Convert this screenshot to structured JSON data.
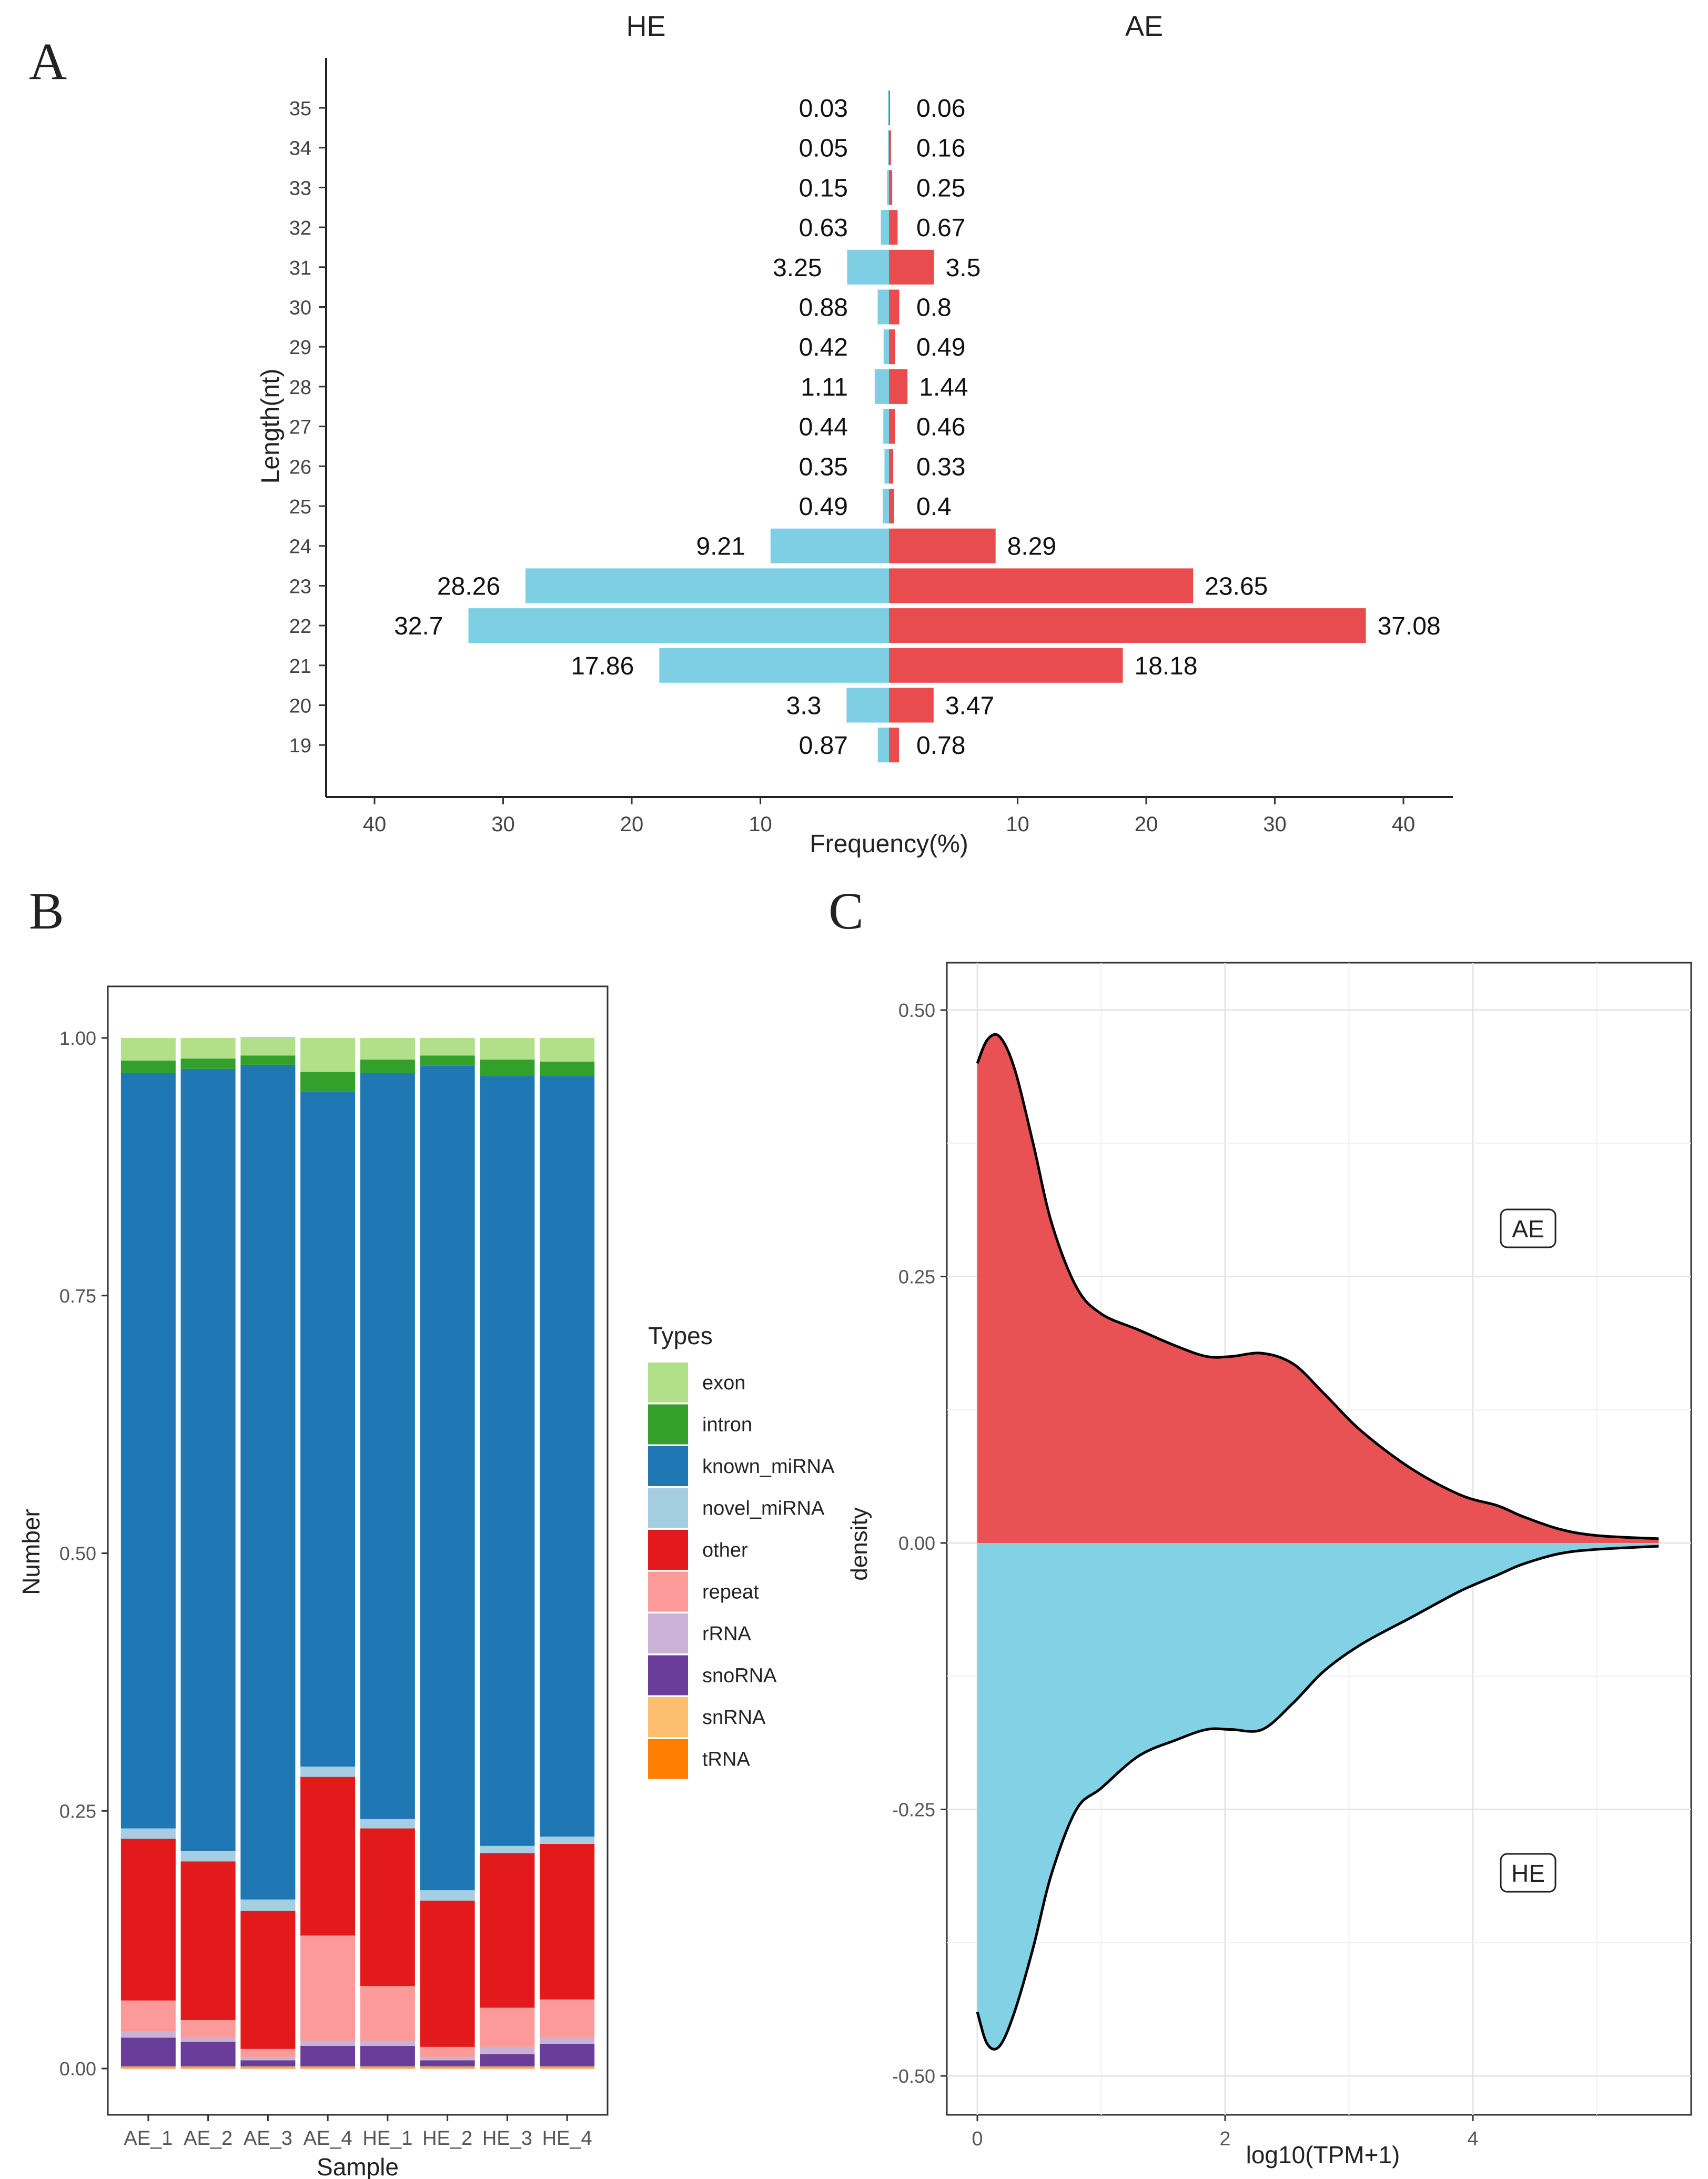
{
  "chart_data": [
    {
      "panel": "A",
      "type": "bar",
      "orientation": "horizontal-mirrored",
      "left_group": "HE",
      "right_group": "AE",
      "ylabel": "Length(nt)",
      "xlabel": "Frequency(%)",
      "xticks_left": [
        "40",
        "30",
        "20",
        "10"
      ],
      "xticks_right": [
        "10",
        "20",
        "30",
        "40"
      ],
      "xlim": [
        0,
        40
      ],
      "colors": {
        "HE": "#7ECFE3",
        "AE": "#E84C4F"
      },
      "categories": [
        "35",
        "34",
        "33",
        "32",
        "31",
        "30",
        "29",
        "28",
        "27",
        "26",
        "25",
        "24",
        "23",
        "22",
        "21",
        "20",
        "19"
      ],
      "series": [
        {
          "name": "HE",
          "values": [
            0.03,
            0.05,
            0.15,
            0.63,
            3.25,
            0.88,
            0.42,
            1.11,
            0.44,
            0.35,
            0.49,
            9.21,
            28.26,
            32.7,
            17.86,
            3.3,
            0.87
          ],
          "labels": [
            "0.03",
            "0.05",
            "0.15",
            "0.63",
            "3.25",
            "0.88",
            "0.42",
            "1.11",
            "0.44",
            "0.35",
            "0.49",
            "9.21",
            "28.26",
            "32.7",
            "17.86",
            "3.3",
            "0.87"
          ]
        },
        {
          "name": "AE",
          "values": [
            0.06,
            0.16,
            0.25,
            0.67,
            3.5,
            0.8,
            0.49,
            1.44,
            0.46,
            0.33,
            0.4,
            8.29,
            23.65,
            37.08,
            18.18,
            3.47,
            0.78
          ],
          "labels": [
            "0.06",
            "0.16",
            "0.25",
            "0.67",
            "3.5",
            "0.8",
            "0.49",
            "1.44",
            "0.46",
            "0.33",
            "0.4",
            "8.29",
            "23.65",
            "37.08",
            "18.18",
            "3.47",
            "0.78"
          ]
        }
      ]
    },
    {
      "panel": "B",
      "type": "bar",
      "stacked": true,
      "xlabel": "Sample",
      "ylabel": "Number",
      "ylim": [
        0,
        1
      ],
      "yticks": [
        "0.00",
        "0.25",
        "0.50",
        "0.75",
        "1.00"
      ],
      "legend_title": "Types",
      "categories": [
        "AE_1",
        "AE_2",
        "AE_3",
        "AE_4",
        "HE_1",
        "HE_2",
        "HE_3",
        "HE_4"
      ],
      "series": [
        {
          "name": "tRNA",
          "color": "#FF7F00",
          "values": [
            0.001,
            0.001,
            0.001,
            0.001,
            0.001,
            0.001,
            0.001,
            0.001
          ]
        },
        {
          "name": "snRNA",
          "color": "#FDBF6F",
          "values": [
            0.001,
            0.001,
            0.001,
            0.001,
            0.001,
            0.001,
            0.001,
            0.001
          ]
        },
        {
          "name": "snoRNA",
          "color": "#6A3D9A",
          "values": [
            0.028,
            0.024,
            0.006,
            0.02,
            0.02,
            0.006,
            0.012,
            0.022
          ]
        },
        {
          "name": "rRNA",
          "color": "#CAB2D6",
          "values": [
            0.006,
            0.004,
            0.003,
            0.005,
            0.005,
            0.003,
            0.007,
            0.006
          ]
        },
        {
          "name": "repeat",
          "color": "#FB9A99",
          "values": [
            0.03,
            0.017,
            0.008,
            0.102,
            0.053,
            0.01,
            0.038,
            0.037
          ]
        },
        {
          "name": "other",
          "color": "#E31A1C",
          "values": [
            0.157,
            0.154,
            0.134,
            0.154,
            0.153,
            0.142,
            0.15,
            0.151
          ]
        },
        {
          "name": "novel_miRNA",
          "color": "#A6CEE3",
          "values": [
            0.01,
            0.01,
            0.011,
            0.01,
            0.009,
            0.01,
            0.007,
            0.007
          ]
        },
        {
          "name": "known_miRNA",
          "color": "#1F78B4",
          "values": [
            0.733,
            0.759,
            0.81,
            0.655,
            0.724,
            0.8,
            0.747,
            0.738
          ]
        },
        {
          "name": "intron",
          "color": "#33A02C",
          "values": [
            0.012,
            0.01,
            0.009,
            0.019,
            0.013,
            0.01,
            0.016,
            0.014
          ]
        },
        {
          "name": "exon",
          "color": "#B2DF8A",
          "values": [
            0.022,
            0.02,
            0.018,
            0.033,
            0.021,
            0.017,
            0.021,
            0.023
          ]
        }
      ],
      "legend_items": [
        "exon",
        "intron",
        "known_miRNA",
        "novel_miRNA",
        "other",
        "repeat",
        "rRNA",
        "snoRNA",
        "snRNA",
        "tRNA"
      ]
    },
    {
      "panel": "C",
      "type": "area",
      "xlabel": "log10(TPM+1)",
      "ylabel": "density",
      "xlim": [
        -0.2,
        5.8
      ],
      "ylim": [
        -0.52,
        0.52
      ],
      "xticks": [
        "0",
        "2",
        "4"
      ],
      "yticks": [
        "0.50",
        "0.25",
        "0.00",
        "-0.25",
        "-0.50"
      ],
      "series": [
        {
          "name": "AE",
          "color": "#E84C4F",
          "x": [
            0,
            0.08,
            0.18,
            0.3,
            0.45,
            0.6,
            0.8,
            1.0,
            1.3,
            1.6,
            1.85,
            2.05,
            2.3,
            2.55,
            2.8,
            3.1,
            3.5,
            3.9,
            4.2,
            4.4,
            4.7,
            5.0,
            5.5
          ],
          "y": [
            0.45,
            0.472,
            0.475,
            0.445,
            0.375,
            0.3,
            0.24,
            0.215,
            0.2,
            0.185,
            0.175,
            0.175,
            0.178,
            0.168,
            0.14,
            0.105,
            0.07,
            0.045,
            0.035,
            0.025,
            0.013,
            0.007,
            0.004
          ]
        },
        {
          "name": "HE",
          "color": "#7ECFE3",
          "x": [
            0,
            0.08,
            0.18,
            0.3,
            0.45,
            0.6,
            0.8,
            1.0,
            1.3,
            1.6,
            1.85,
            2.05,
            2.3,
            2.55,
            2.8,
            3.1,
            3.5,
            3.9,
            4.2,
            4.4,
            4.7,
            5.0,
            5.5
          ],
          "y": [
            -0.44,
            -0.47,
            -0.472,
            -0.44,
            -0.38,
            -0.31,
            -0.25,
            -0.23,
            -0.2,
            -0.185,
            -0.175,
            -0.175,
            -0.175,
            -0.15,
            -0.12,
            -0.095,
            -0.07,
            -0.045,
            -0.03,
            -0.02,
            -0.01,
            -0.006,
            -0.003
          ]
        }
      ],
      "annotations": [
        "AE",
        "HE"
      ]
    }
  ],
  "panel_labels": {
    "a": "A",
    "b": "B",
    "c": "C"
  }
}
